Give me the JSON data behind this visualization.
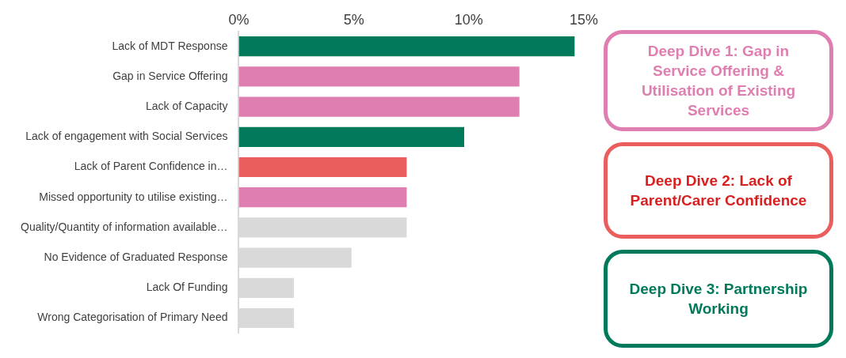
{
  "chart_data": {
    "type": "bar",
    "orientation": "horizontal",
    "categories": [
      "Lack of MDT Response",
      "Gap in Service Offering",
      "Lack of Capacity",
      "Lack of engagement with Social Services",
      "Lack of Parent Confidence in…",
      "Missed opportunity to utilise existing…",
      "Quality/Quantity of information available…",
      "No Evidence of Graduated Response",
      "Lack Of Funding",
      "Wrong Categorisation of Primary Need"
    ],
    "values": [
      14.6,
      12.2,
      12.2,
      9.8,
      7.3,
      7.3,
      7.3,
      4.9,
      2.4,
      2.4
    ],
    "colors": [
      "#007a5a",
      "#df7eb0",
      "#df7eb0",
      "#007a5a",
      "#ea5f5e",
      "#df7eb0",
      "#d9d9d9",
      "#d9d9d9",
      "#d9d9d9",
      "#d9d9d9"
    ],
    "xlim": [
      0,
      15
    ],
    "xticks": [
      {
        "value": 0,
        "label": "0%"
      },
      {
        "value": 5,
        "label": "5%"
      },
      {
        "value": 10,
        "label": "10%"
      },
      {
        "value": 15,
        "label": "15%"
      }
    ],
    "grid": false,
    "legend": false,
    "annotations": [
      "Deep Dive 1: Gap in Service Offering & Utilisation of Existing Services",
      "Deep Dive 2: Lack of Parent/Carer Confidence",
      "Deep Dive 3: Partnership Working"
    ]
  }
}
